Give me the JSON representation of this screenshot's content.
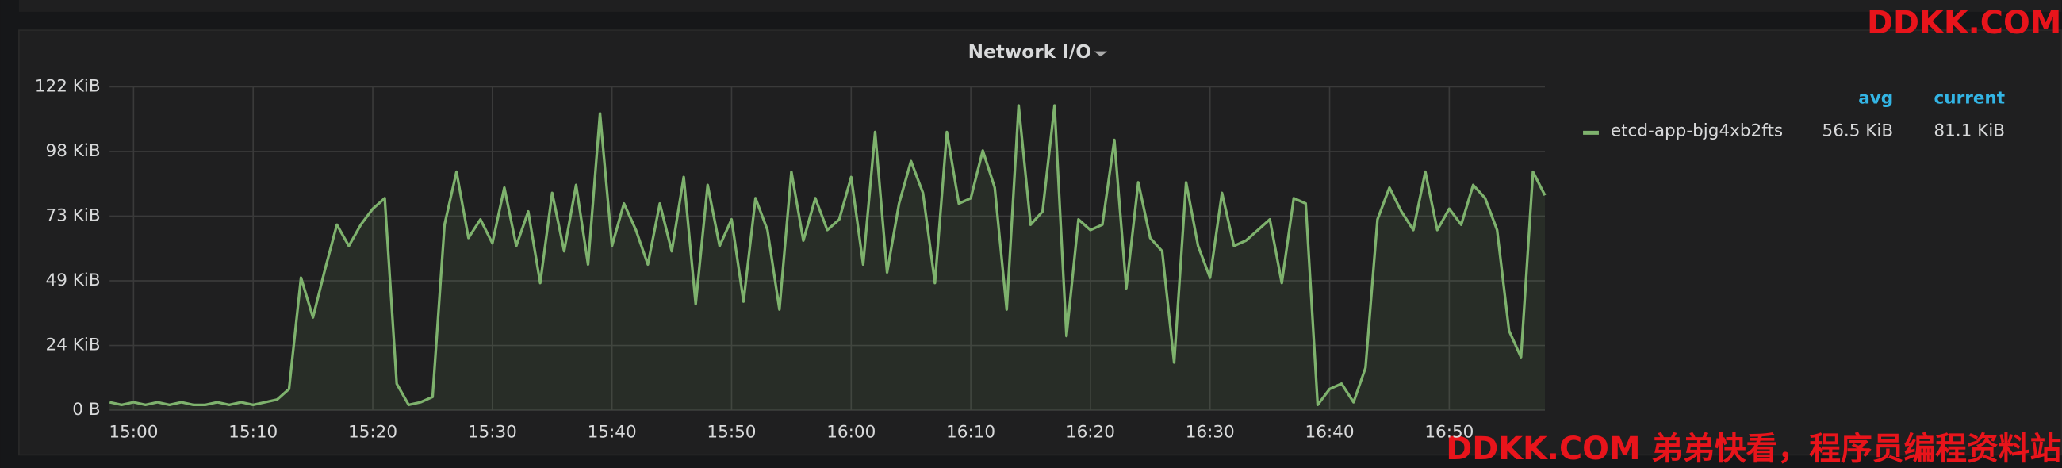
{
  "chart_data": {
    "type": "line",
    "title": "Network I/O",
    "categories": [
      null,
      null,
      "15:00",
      null,
      null,
      null,
      null,
      null,
      null,
      null,
      null,
      null,
      "15:10",
      null,
      null,
      null,
      null,
      null,
      null,
      null,
      null,
      null,
      "15:20",
      null,
      null,
      null,
      null,
      null,
      null,
      null,
      null,
      null,
      "15:30",
      null,
      null,
      null,
      null,
      null,
      null,
      null,
      null,
      null,
      "15:40",
      null,
      null,
      null,
      null,
      null,
      null,
      null,
      null,
      null,
      "15:50",
      null,
      null,
      null,
      null,
      null,
      null,
      null,
      null,
      null,
      "16:00",
      null,
      null,
      null,
      null,
      null,
      null,
      null,
      null,
      null,
      "16:10",
      null,
      null,
      null,
      null,
      null,
      null,
      null,
      null,
      null,
      "16:20",
      null,
      null,
      null,
      null,
      null,
      null,
      null,
      null,
      null,
      "16:30",
      null,
      null,
      null,
      null,
      null,
      null,
      null,
      null,
      null,
      "16:40",
      null,
      null,
      null,
      null,
      null,
      null,
      null,
      null,
      null,
      "16:50",
      null,
      null,
      null,
      null,
      null,
      null,
      null,
      null
    ],
    "series": [
      {
        "name": "etcd-app-bjg4xb2fts",
        "color": "#7eb26d",
        "values": [
          3,
          2,
          3,
          2,
          3,
          2,
          3,
          2,
          2,
          3,
          2,
          3,
          2,
          3,
          4,
          8,
          50,
          35,
          53,
          70,
          62,
          70,
          76,
          80,
          10,
          2,
          3,
          5,
          70,
          90,
          65,
          72,
          63,
          84,
          62,
          75,
          48,
          82,
          60,
          85,
          55,
          112,
          62,
          78,
          68,
          55,
          78,
          60,
          88,
          40,
          85,
          62,
          72,
          41,
          80,
          68,
          38,
          90,
          64,
          80,
          68,
          72,
          88,
          55,
          105,
          52,
          78,
          94,
          82,
          48,
          105,
          78,
          80,
          98,
          84,
          38,
          115,
          70,
          75,
          115,
          28,
          72,
          68,
          70,
          102,
          46,
          86,
          65,
          60,
          18,
          86,
          62,
          50,
          82,
          62,
          64,
          68,
          72,
          48,
          80,
          78,
          2,
          8,
          10,
          3,
          16,
          72,
          84,
          75,
          68,
          90,
          68,
          76,
          70,
          85,
          80,
          68,
          30,
          20,
          90,
          81.1
        ]
      }
    ],
    "ylim": [
      0,
      122.07
    ],
    "yticks": [
      {
        "value": 0,
        "label": "0 B"
      },
      {
        "value": 24.41,
        "label": "24 KiB"
      },
      {
        "value": 48.83,
        "label": "49 KiB"
      },
      {
        "value": 73.24,
        "label": "73 KiB"
      },
      {
        "value": 97.66,
        "label": "98 KiB"
      },
      {
        "value": 122.07,
        "label": "122 KiB"
      }
    ],
    "grid": true,
    "legend": {
      "columns": [
        "avg",
        "current"
      ],
      "values": [
        "56.5 KiB",
        "81.1 KiB"
      ]
    },
    "watermarks": [
      "DDKK.COM",
      "DDKK.COM 弟弟快看，程序员编程资料站"
    ]
  }
}
